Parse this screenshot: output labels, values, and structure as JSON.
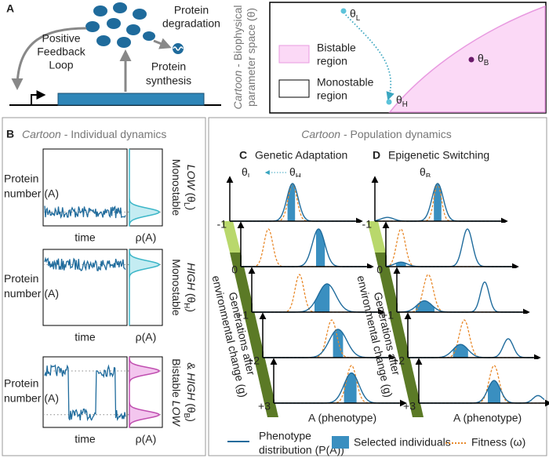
{
  "panel_a": {
    "label": "A",
    "feedback": [
      "Positive",
      "Feedback",
      "Loop"
    ],
    "degradation": [
      "Protein",
      "degradation"
    ],
    "synthesis": [
      "Protein",
      "synthesis"
    ],
    "parameter_space": {
      "title": [
        [
          {
            "text": "Cartoon",
            "italic": true
          },
          {
            "text": " - Biophysical"
          }
        ],
        [
          {
            "text": "parameter space (θ)"
          }
        ]
      ],
      "theta_l": [
        {
          "text": "θ"
        },
        {
          "text": "L",
          "sub": true
        }
      ],
      "theta_h": [
        {
          "text": "θ"
        },
        {
          "text": "H",
          "sub": true
        }
      ],
      "theta_b": [
        {
          "text": "θ"
        },
        {
          "text": "B",
          "sub": true
        }
      ],
      "legend": [
        [
          "Bistable",
          "region"
        ],
        [
          "Monostable",
          "region"
        ]
      ]
    }
  },
  "panel_b": {
    "label": "B",
    "title": [
      {
        "text": "Cartoon",
        "italic": true
      },
      {
        "text": " - Individual dynamics"
      }
    ],
    "rows": [
      {
        "y_label": [
          "Protein",
          "number (A)"
        ],
        "x_label": "time",
        "density_label": "ρ(A)",
        "color": "#2a8f9f",
        "state": [
          [
            {
              "text": "Monostable"
            }
          ],
          [
            {
              "text": "LOW",
              "italic": true
            },
            {
              "text": " (θ"
            },
            {
              "text": "L",
              "sub": true
            },
            {
              "text": ")"
            }
          ]
        ]
      },
      {
        "y_label": [
          "Protein",
          "number (A)"
        ],
        "x_label": "time",
        "density_label": "ρ(A)",
        "color": "#2a8f9f",
        "state": [
          [
            {
              "text": "Monostable"
            }
          ],
          [
            {
              "text": "HIGH",
              "italic": true
            },
            {
              "text": " (θ"
            },
            {
              "text": "H",
              "sub": true
            },
            {
              "text": ")"
            }
          ]
        ]
      },
      {
        "y_label": [
          "Protein",
          "number (A)"
        ],
        "x_label": "time",
        "density_label": "ρ(A)",
        "color": "#7a1a78",
        "state": [
          [
            {
              "text": "Bistable "
            },
            {
              "text": "LOW",
              "italic": true
            }
          ],
          [
            {
              "text": "& "
            },
            {
              "text": "HIGH",
              "italic": true
            },
            {
              "text": " (θ"
            },
            {
              "text": "B",
              "sub": true
            },
            {
              "text": ")"
            }
          ]
        ]
      }
    ]
  },
  "panel_cd": {
    "title": [
      {
        "text": "Cartoon",
        "italic": true
      },
      {
        "text": " - Population dynamics"
      }
    ],
    "panels": [
      {
        "label": "C",
        "name": "Genetic Adaptation",
        "color": "#45b5d0",
        "subtitle": [
          [
            {
              "text": "θ"
            },
            {
              "text": "L",
              "sub": true
            }
          ],
          [
            {
              "text": "θ"
            },
            {
              "text": "H",
              "sub": true
            }
          ]
        ],
        "generations": [
          "-1",
          "0",
          "+1",
          "+2",
          "+3"
        ],
        "y_axis_label": [
          "Generations after",
          "environmental change (g)"
        ],
        "x_axis_label": "A (phenotype)"
      },
      {
        "label": "D",
        "name": "Epigenetic Switching",
        "color": "#7a1a78",
        "subtitle": [
          [
            {
              "text": "θ"
            },
            {
              "text": "B",
              "sub": true
            }
          ]
        ],
        "generations": [
          "-1",
          "0",
          "+1",
          "+2",
          "+3"
        ],
        "y_axis_label": [
          "Generations after",
          "environmental change (g)"
        ],
        "x_axis_label": "A (phenotype)"
      }
    ],
    "legend": {
      "phenotype": [
        "Phenotype",
        "distribution (P(A))"
      ],
      "selected": "Selected individuals",
      "fitness": "Fitness (ω)"
    }
  }
}
